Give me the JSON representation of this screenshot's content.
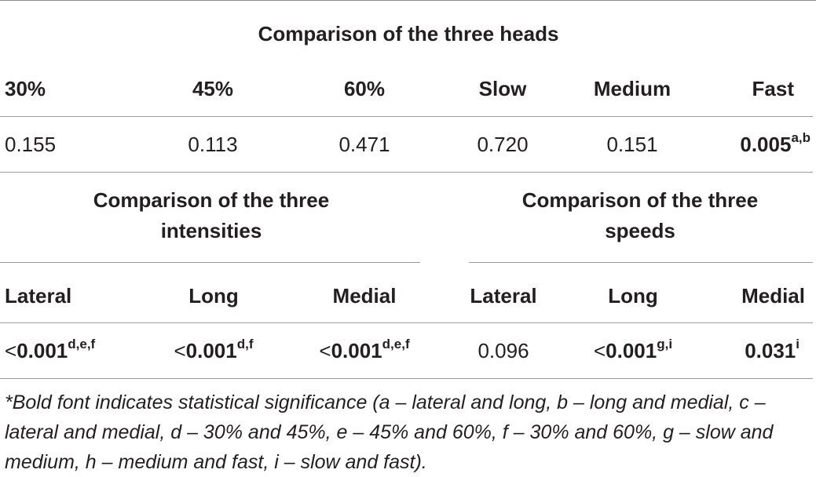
{
  "heads": {
    "title": "Comparison of the three heads",
    "columns": [
      "30%",
      "45%",
      "60%",
      "Slow",
      "Medium",
      "Fast"
    ],
    "values": [
      {
        "value": "0.155",
        "bold": false,
        "sup": ""
      },
      {
        "value": "0.113",
        "bold": false,
        "sup": ""
      },
      {
        "value": "0.471",
        "bold": false,
        "sup": ""
      },
      {
        "value": "0.720",
        "bold": false,
        "sup": ""
      },
      {
        "value": "0.151",
        "bold": false,
        "sup": ""
      },
      {
        "value": "0.005",
        "bold": true,
        "sup": "a,b"
      }
    ]
  },
  "intensities": {
    "title": "Comparison of the three intensities"
  },
  "speeds": {
    "title": "Comparison of the three speeds"
  },
  "lower": {
    "columns": [
      "Lateral",
      "Long",
      "Medial",
      "Lateral",
      "Long",
      "Medial"
    ],
    "values": [
      {
        "prefix": "<",
        "value": "0.001",
        "bold": true,
        "sup": "d,e,f"
      },
      {
        "prefix": "<",
        "value": "0.001",
        "bold": true,
        "sup": "d,f"
      },
      {
        "prefix": "<",
        "value": "0.001",
        "bold": true,
        "sup": "d,e,f"
      },
      {
        "prefix": "",
        "value": "0.096",
        "bold": false,
        "sup": ""
      },
      {
        "prefix": "<",
        "value": "0.001",
        "bold": true,
        "sup": "g,i"
      },
      {
        "prefix": "",
        "value": "0.031",
        "bold": true,
        "sup": "i"
      }
    ]
  },
  "footnote": "*Bold font indicates statistical significance (a – lateral and long, b – long and medial, c – lateral and medial, d – 30% and 45%, e – 45% and 60%, f – 30% and 60%, g – slow and medium, h – medium and fast, i – slow and fast)."
}
